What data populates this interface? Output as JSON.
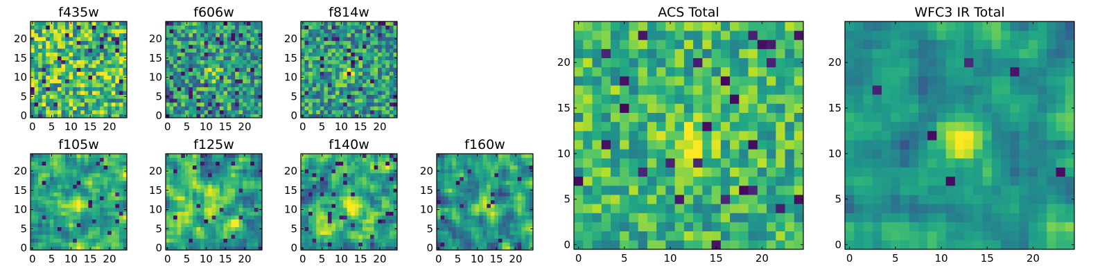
{
  "figure": {
    "colormap": "viridis",
    "colors": {
      "viridis_low": "#440154",
      "viridis_mid": "#21908c",
      "viridis_high": "#fde725",
      "axis": "#000000",
      "background": "#ffffff"
    }
  },
  "chart_data": [
    {
      "type": "heatmap",
      "title": "f435w",
      "grid": false,
      "xlim": [
        0,
        24
      ],
      "ylim": [
        0,
        24
      ],
      "xticks": [
        "0",
        "5",
        "10",
        "15",
        "20"
      ],
      "yticks": [
        "0",
        "5",
        "10",
        "15",
        "20"
      ],
      "z_rows": 25,
      "z_cols": 25,
      "source": "f435w"
    },
    {
      "type": "heatmap",
      "title": "f606w",
      "grid": false,
      "xlim": [
        0,
        24
      ],
      "ylim": [
        0,
        24
      ],
      "xticks": [
        "0",
        "5",
        "10",
        "15",
        "20"
      ],
      "yticks": [
        "0",
        "5",
        "10",
        "15",
        "20"
      ],
      "z_rows": 25,
      "z_cols": 25,
      "source": "f606w"
    },
    {
      "type": "heatmap",
      "title": "f814w",
      "grid": false,
      "xlim": [
        0,
        24
      ],
      "ylim": [
        0,
        24
      ],
      "xticks": [
        "0",
        "5",
        "10",
        "15",
        "20"
      ],
      "yticks": [
        "0",
        "5",
        "10",
        "15",
        "20"
      ],
      "z_rows": 25,
      "z_cols": 25,
      "source": "f814w"
    },
    {
      "type": "heatmap",
      "title": "f105w",
      "grid": false,
      "xlim": [
        0,
        24
      ],
      "ylim": [
        0,
        24
      ],
      "xticks": [
        "0",
        "5",
        "10",
        "15",
        "20"
      ],
      "yticks": [
        "0",
        "5",
        "10",
        "15",
        "20"
      ],
      "z_rows": 25,
      "z_cols": 25,
      "source": "f105w"
    },
    {
      "type": "heatmap",
      "title": "f125w",
      "grid": false,
      "xlim": [
        0,
        24
      ],
      "ylim": [
        0,
        24
      ],
      "xticks": [
        "0",
        "5",
        "10",
        "15",
        "20"
      ],
      "yticks": [
        "0",
        "5",
        "10",
        "15",
        "20"
      ],
      "z_rows": 25,
      "z_cols": 25,
      "source": "f125w"
    },
    {
      "type": "heatmap",
      "title": "f140w",
      "grid": false,
      "xlim": [
        0,
        24
      ],
      "ylim": [
        0,
        24
      ],
      "xticks": [
        "0",
        "5",
        "10",
        "15",
        "20"
      ],
      "yticks": [
        "0",
        "5",
        "10",
        "15",
        "20"
      ],
      "z_rows": 25,
      "z_cols": 25,
      "source": "f140w"
    },
    {
      "type": "heatmap",
      "title": "f160w",
      "grid": false,
      "xlim": [
        0,
        24
      ],
      "ylim": [
        0,
        24
      ],
      "xticks": [
        "0",
        "5",
        "10",
        "15",
        "20"
      ],
      "yticks": [
        "0",
        "5",
        "10",
        "15",
        "20"
      ],
      "z_rows": 25,
      "z_cols": 25,
      "source": "f160w"
    },
    {
      "type": "heatmap",
      "title": "ACS Total",
      "grid": false,
      "xlim": [
        0,
        24
      ],
      "ylim": [
        0,
        24
      ],
      "xticks": [
        "0",
        "5",
        "10",
        "15",
        "20"
      ],
      "yticks": [
        "0",
        "5",
        "10",
        "15",
        "20"
      ],
      "z_rows": 25,
      "z_cols": 25,
      "source": "acs"
    },
    {
      "type": "heatmap",
      "title": "WFC3 IR Total",
      "grid": false,
      "xlim": [
        0,
        24
      ],
      "ylim": [
        0,
        24
      ],
      "xticks": [
        "0",
        "5",
        "10",
        "15",
        "20"
      ],
      "yticks": [
        "0",
        "5",
        "10",
        "15",
        "20"
      ],
      "z_rows": 25,
      "z_cols": 25,
      "source": "wfc3"
    }
  ]
}
